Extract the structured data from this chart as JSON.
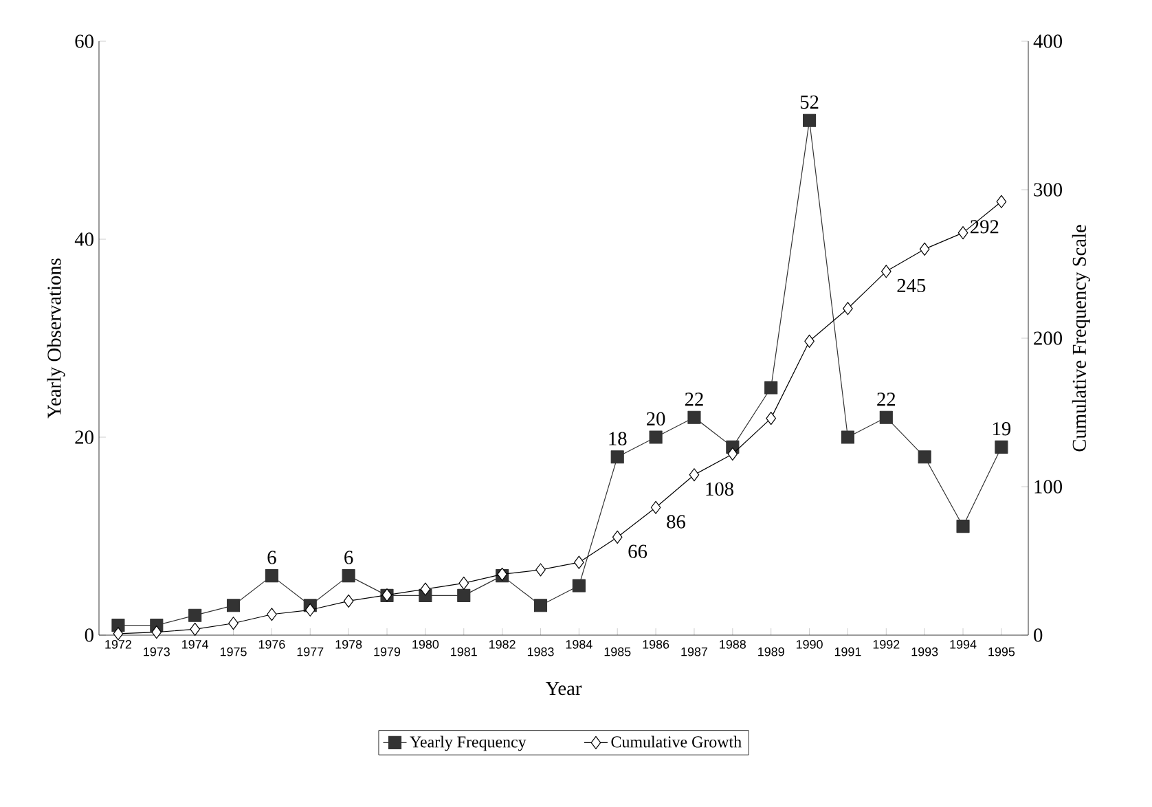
{
  "chart_data": {
    "type": "line",
    "xlabel": "Year",
    "ylabel": "Yearly Observations",
    "y2label": "Cumulative Frequency Scale",
    "categories": [
      "1972",
      "1973",
      "1974",
      "1975",
      "1976",
      "1977",
      "1978",
      "1979",
      "1980",
      "1981",
      "1982",
      "1983",
      "1984",
      "1985",
      "1986",
      "1987",
      "1988",
      "1989",
      "1990",
      "1991",
      "1992",
      "1993",
      "1994",
      "1995"
    ],
    "series": [
      {
        "name": "Yearly Frequency",
        "color": "#333333",
        "marker": "square",
        "values": [
          1,
          1,
          2,
          3,
          6,
          3,
          6,
          4,
          4,
          4,
          6,
          3,
          5,
          18,
          20,
          22,
          19,
          25,
          52,
          20,
          22,
          18,
          11,
          19
        ],
        "value_labels": [
          null,
          null,
          null,
          null,
          "6",
          null,
          "6",
          null,
          null,
          null,
          null,
          null,
          null,
          "18",
          "20",
          "22",
          null,
          null,
          "52",
          null,
          "22",
          null,
          null,
          "19"
        ]
      },
      {
        "name": "Cumulative Growth",
        "color": "#000000",
        "marker": "diamond",
        "axis": "y2",
        "values": [
          1,
          2,
          4,
          8,
          14,
          17,
          23,
          27,
          31,
          35,
          41,
          44,
          49,
          66,
          86,
          108,
          122,
          146,
          198,
          220,
          245,
          260,
          271,
          292
        ],
        "value_labels": [
          null,
          null,
          null,
          null,
          null,
          null,
          null,
          null,
          null,
          null,
          null,
          null,
          null,
          "66",
          "86",
          "108",
          null,
          null,
          null,
          null,
          "245",
          null,
          null,
          "292"
        ]
      }
    ],
    "ylim": [
      0,
      60
    ],
    "yticks": [
      0,
      20,
      40,
      60
    ],
    "y2lim": [
      0,
      400
    ],
    "y2ticks": [
      0,
      100,
      200,
      300,
      400
    ],
    "legend": "bottom",
    "grid": false,
    "line_style": "solid"
  }
}
